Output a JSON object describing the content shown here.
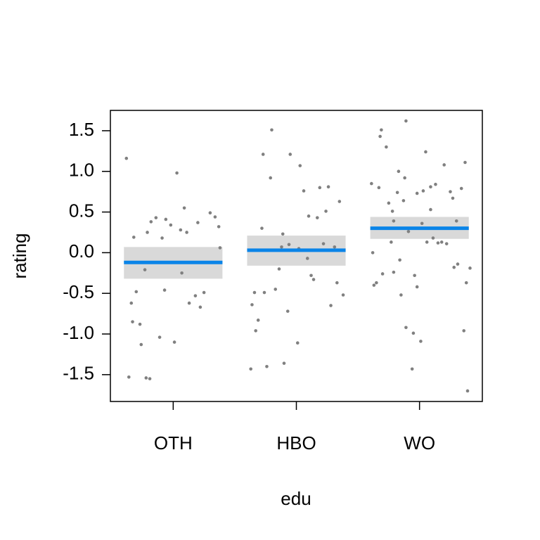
{
  "chart_data": {
    "type": "effect",
    "xlabel": "edu",
    "ylabel": "rating",
    "categories": [
      "OTH",
      "HBO",
      "WO"
    ],
    "xlim": [
      0.49,
      3.51
    ],
    "ylim": [
      -1.83,
      1.75
    ],
    "yticks": [
      1.5,
      {
        "value": 1,
        "label": "1.0"
      },
      0.5,
      {
        "value": 0,
        "label": "0.0"
      },
      -0.5,
      {
        "value": -1,
        "label": "-1.0"
      },
      -1.5
    ],
    "fit": {
      "values": [
        -0.12,
        0.03,
        0.3
      ],
      "lower": [
        -0.32,
        -0.16,
        0.17
      ],
      "upper": [
        0.07,
        0.21,
        0.44
      ],
      "color": "#0a84e8",
      "band_color": "#d9d9d9"
    },
    "points": {
      "color": "#808080",
      "x": [
        0.62,
        0.66,
        0.68,
        0.7,
        0.67,
        0.73,
        0.64,
        0.74,
        0.77,
        0.78,
        0.81,
        0.79,
        0.82,
        0.86,
        0.89,
        0.91,
        0.93,
        0.94,
        0.98,
        1.01,
        1.03,
        1.06,
        1.07,
        1.09,
        1.11,
        1.13,
        1.18,
        1.2,
        1.22,
        1.25,
        1.3,
        1.34,
        1.37,
        1.38,
        1.64,
        1.66,
        1.69,
        1.72,
        1.73,
        1.74,
        1.79,
        1.8,
        1.83,
        1.86,
        1.88,
        1.89,
        1.9,
        1.93,
        1.94,
        1.95,
        2.01,
        2.02,
        2.03,
        2.06,
        2.09,
        2.1,
        2.12,
        2.14,
        2.17,
        2.19,
        2.22,
        2.24,
        2.26,
        2.28,
        2.31,
        2.33,
        2.35,
        2.38,
        1.63,
        1.76,
        1.67,
        2.61,
        2.62,
        2.65,
        2.67,
        2.68,
        2.69,
        2.7,
        2.73,
        2.75,
        2.77,
        2.79,
        2.82,
        2.83,
        2.84,
        2.85,
        2.87,
        2.89,
        2.89,
        2.91,
        2.94,
        2.95,
        2.96,
        2.98,
        3.01,
        3.02,
        3.03,
        3.05,
        3.06,
        3.09,
        3.11,
        3.13,
        3.15,
        3.18,
        3.2,
        3.22,
        3.25,
        3.27,
        3.28,
        3.3,
        3.31,
        3.34,
        3.36,
        3.37,
        3.38,
        3.39,
        3.41,
        2.63,
        2.88,
        2.79,
        2.98,
        3.09,
        2.78
      ],
      "y": [
        1.16,
        -0.62,
        0.19,
        -0.48,
        -0.85,
        -0.88,
        -1.53,
        -1.13,
        -0.21,
        -1.54,
        -1.55,
        0.25,
        0.38,
        0.43,
        -1.04,
        0.18,
        -0.46,
        0.41,
        0.34,
        -1.1,
        0.98,
        0.28,
        -0.25,
        0.55,
        0.25,
        -0.62,
        -0.53,
        0.37,
        -0.67,
        -0.49,
        0.49,
        0.44,
        0.32,
        0.06,
        -0.64,
        -0.49,
        -0.83,
        0.3,
        1.21,
        -0.49,
        0.92,
        1.51,
        -0.45,
        -0.2,
        0.07,
        0.23,
        -1.36,
        -0.72,
        0.1,
        1.21,
        -1.11,
        0.05,
        1.07,
        0.76,
        -0.07,
        0.45,
        -0.28,
        -0.33,
        0.43,
        0.8,
        0.11,
        0.51,
        0.81,
        -0.65,
        0.07,
        -0.37,
        0.63,
        -0.52,
        -1.43,
        -1.4,
        -0.96,
        0.85,
        0.0,
        -0.37,
        0.8,
        1.43,
        1.51,
        -0.26,
        1.3,
        0.61,
        0.13,
        -0.24,
        0.74,
        1.0,
        -0.09,
        -0.52,
        0.64,
        1.62,
        -0.92,
        0.26,
        -1.43,
        -0.99,
        -0.28,
        0.73,
        -1.09,
        0.36,
        0.76,
        1.24,
        0.13,
        0.81,
        0.18,
        0.84,
        0.12,
        0.13,
        1.08,
        0.11,
        0.75,
        0.67,
        -0.18,
        0.39,
        -0.14,
        0.79,
        -0.96,
        1.11,
        -0.37,
        -1.7,
        -0.19,
        -0.4,
        0.92,
        0.39,
        -0.42,
        0.53,
        0.51
      ]
    }
  }
}
